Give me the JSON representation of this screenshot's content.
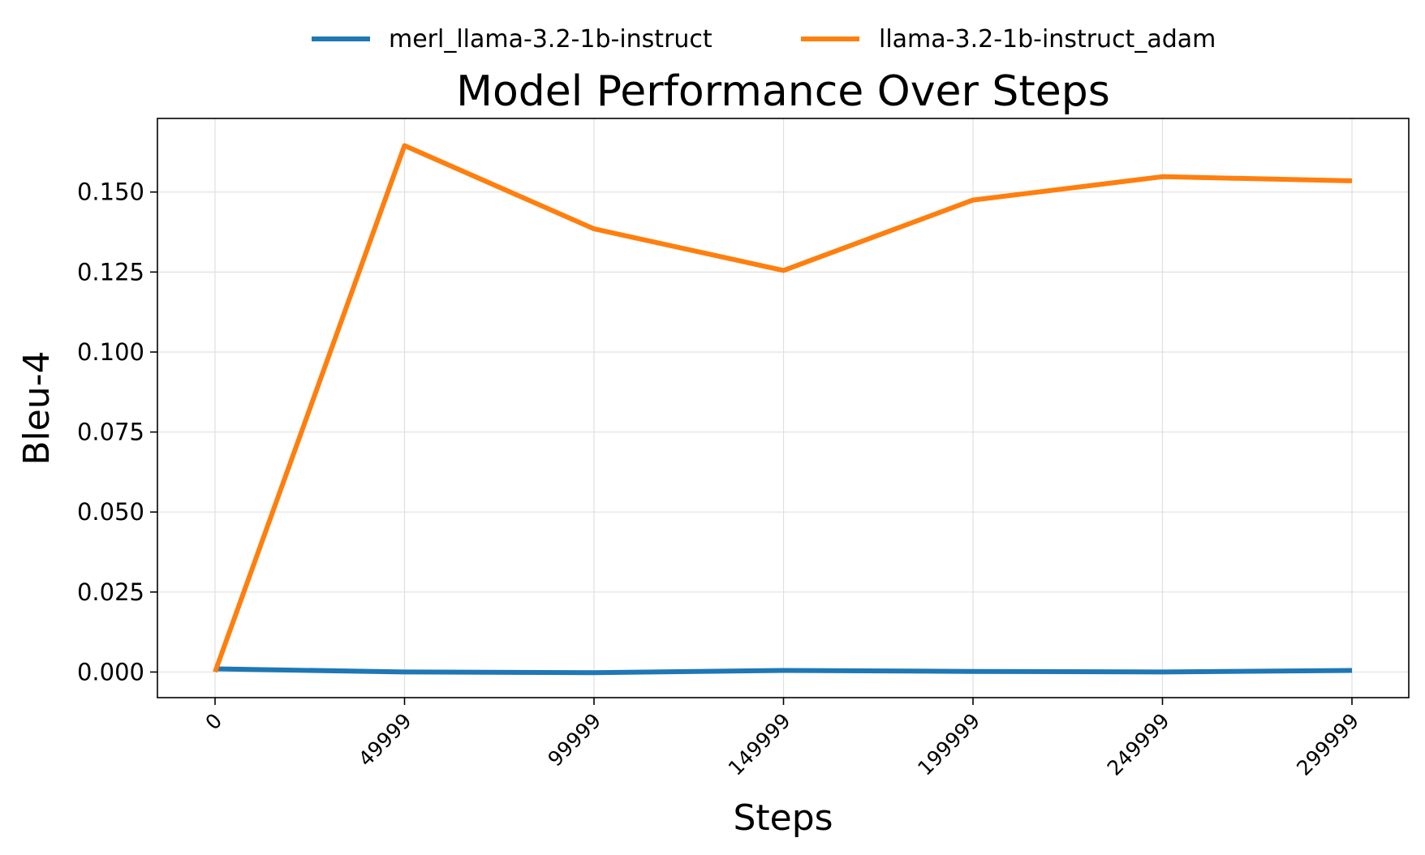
{
  "chart_data": {
    "type": "line",
    "title": "Model Performance Over Steps",
    "xlabel": "Steps",
    "ylabel": "Bleu-4",
    "x": [
      0,
      49999,
      99999,
      149999,
      199999,
      249999,
      299999
    ],
    "xticks": [
      "0",
      "49999",
      "99999",
      "149999",
      "199999",
      "249999",
      "299999"
    ],
    "yticks": [
      "0.000",
      "0.025",
      "0.050",
      "0.075",
      "0.100",
      "0.125",
      "0.150"
    ],
    "ylim": [
      -0.008,
      0.173
    ],
    "grid": true,
    "legend_position": "top-center",
    "series": [
      {
        "name": "merl_llama-3.2-1b-instruct",
        "color": "#1f77b4",
        "values": [
          0.001,
          0.0,
          -0.0002,
          0.0005,
          0.0002,
          0.0,
          0.0005
        ]
      },
      {
        "name": "llama-3.2-1b-instruct_adam",
        "color": "#ff7f0e",
        "values": [
          0.0,
          0.1645,
          0.1385,
          0.1255,
          0.1475,
          0.1548,
          0.1535
        ]
      }
    ]
  }
}
